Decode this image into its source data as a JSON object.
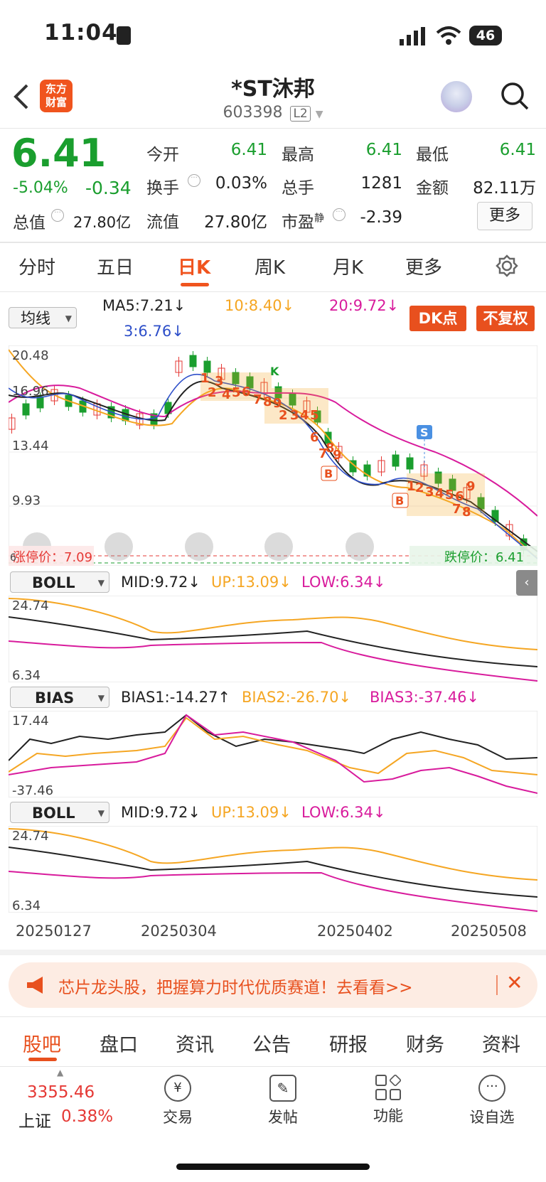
{
  "status": {
    "time": "11:04",
    "battery": "46"
  },
  "header": {
    "title": "*ST沐邦",
    "code": "603398",
    "level": "L2",
    "logo_line1": "东方",
    "logo_line2": "财富"
  },
  "quote": {
    "price": "6.41",
    "pct": "-5.04%",
    "chg": "-0.34",
    "open_label": "今开",
    "open": "6.41",
    "high_label": "最高",
    "high": "6.41",
    "low_label": "最低",
    "low": "6.41",
    "turnover_label": "换手",
    "turnover": "0.03%",
    "vol_label": "总手",
    "vol": "1281",
    "amount_label": "金额",
    "amount": "82.11万",
    "mcap_label": "总值",
    "mcap": "27.80亿",
    "float_label": "流值",
    "float": "27.80亿",
    "pe_label": "市盈",
    "pe_sup": "静",
    "pe": "-2.39",
    "more": "更多"
  },
  "tabs": [
    "分时",
    "五日",
    "日K",
    "周K",
    "月K",
    "更多"
  ],
  "ma": {
    "selector": "均线",
    "ma5": "MA5:7.21↓",
    "ma10": "10:8.40↓",
    "ma20": "20:9.72↓",
    "ma3": "3:6.76↓",
    "dk": "DK点",
    "fq": "不复权"
  },
  "main_chart": {
    "y1": "20.48",
    "y2": "16.96",
    "y3": "13.44",
    "y4": "9.93",
    "limit_up": "涨停价：7.09",
    "limit_down": "跌停价：6.41",
    "last": "6"
  },
  "boll1": {
    "selector": "BOLL",
    "mid": "MID:9.72↓",
    "up": "UP:13.09↓",
    "low": "LOW:6.34↓",
    "ytop": "24.74",
    "ybot": "6.34"
  },
  "bias": {
    "selector": "BIAS",
    "b1": "BIAS1:-14.27↑",
    "b2": "BIAS2:-26.70↓",
    "b3": "BIAS3:-37.46↓",
    "ytop": "17.44",
    "ybot": "-37.46"
  },
  "boll2": {
    "selector": "BOLL",
    "mid": "MID:9.72↓",
    "up": "UP:13.09↓",
    "low": "LOW:6.34↓",
    "ytop": "24.74",
    "ybot": "6.34"
  },
  "dates": [
    "20250127",
    "20250304",
    "20250402",
    "20250508"
  ],
  "banner": {
    "text": "芯片龙头股，把握算力时代优质赛道！去看看>>"
  },
  "bottom_tabs": [
    "股吧",
    "盘口",
    "资讯",
    "公告",
    "研报",
    "财务",
    "资料"
  ],
  "nav": {
    "index_value": "3355.46",
    "index_name": "上证",
    "index_pct": "0.38%",
    "trade": "交易",
    "post": "发帖",
    "func": "功能",
    "watch": "设自选"
  },
  "colors": {
    "up": "#e53935",
    "down": "#1a9e2e",
    "accent": "#f0541e"
  },
  "chart_data": {
    "type": "line",
    "title": "",
    "x": [
      "20250127",
      "20250304",
      "20250402",
      "20250508"
    ],
    "ylim": [
      6.41,
      20.48
    ],
    "series": [
      {
        "name": "MA5",
        "values": [
          15.8,
          18.9,
          13.5,
          7.2
        ]
      },
      {
        "name": "MA10",
        "values": [
          16.2,
          18.5,
          14.2,
          8.4
        ]
      },
      {
        "name": "MA20",
        "values": [
          15.0,
          17.0,
          16.0,
          9.72
        ]
      }
    ]
  }
}
